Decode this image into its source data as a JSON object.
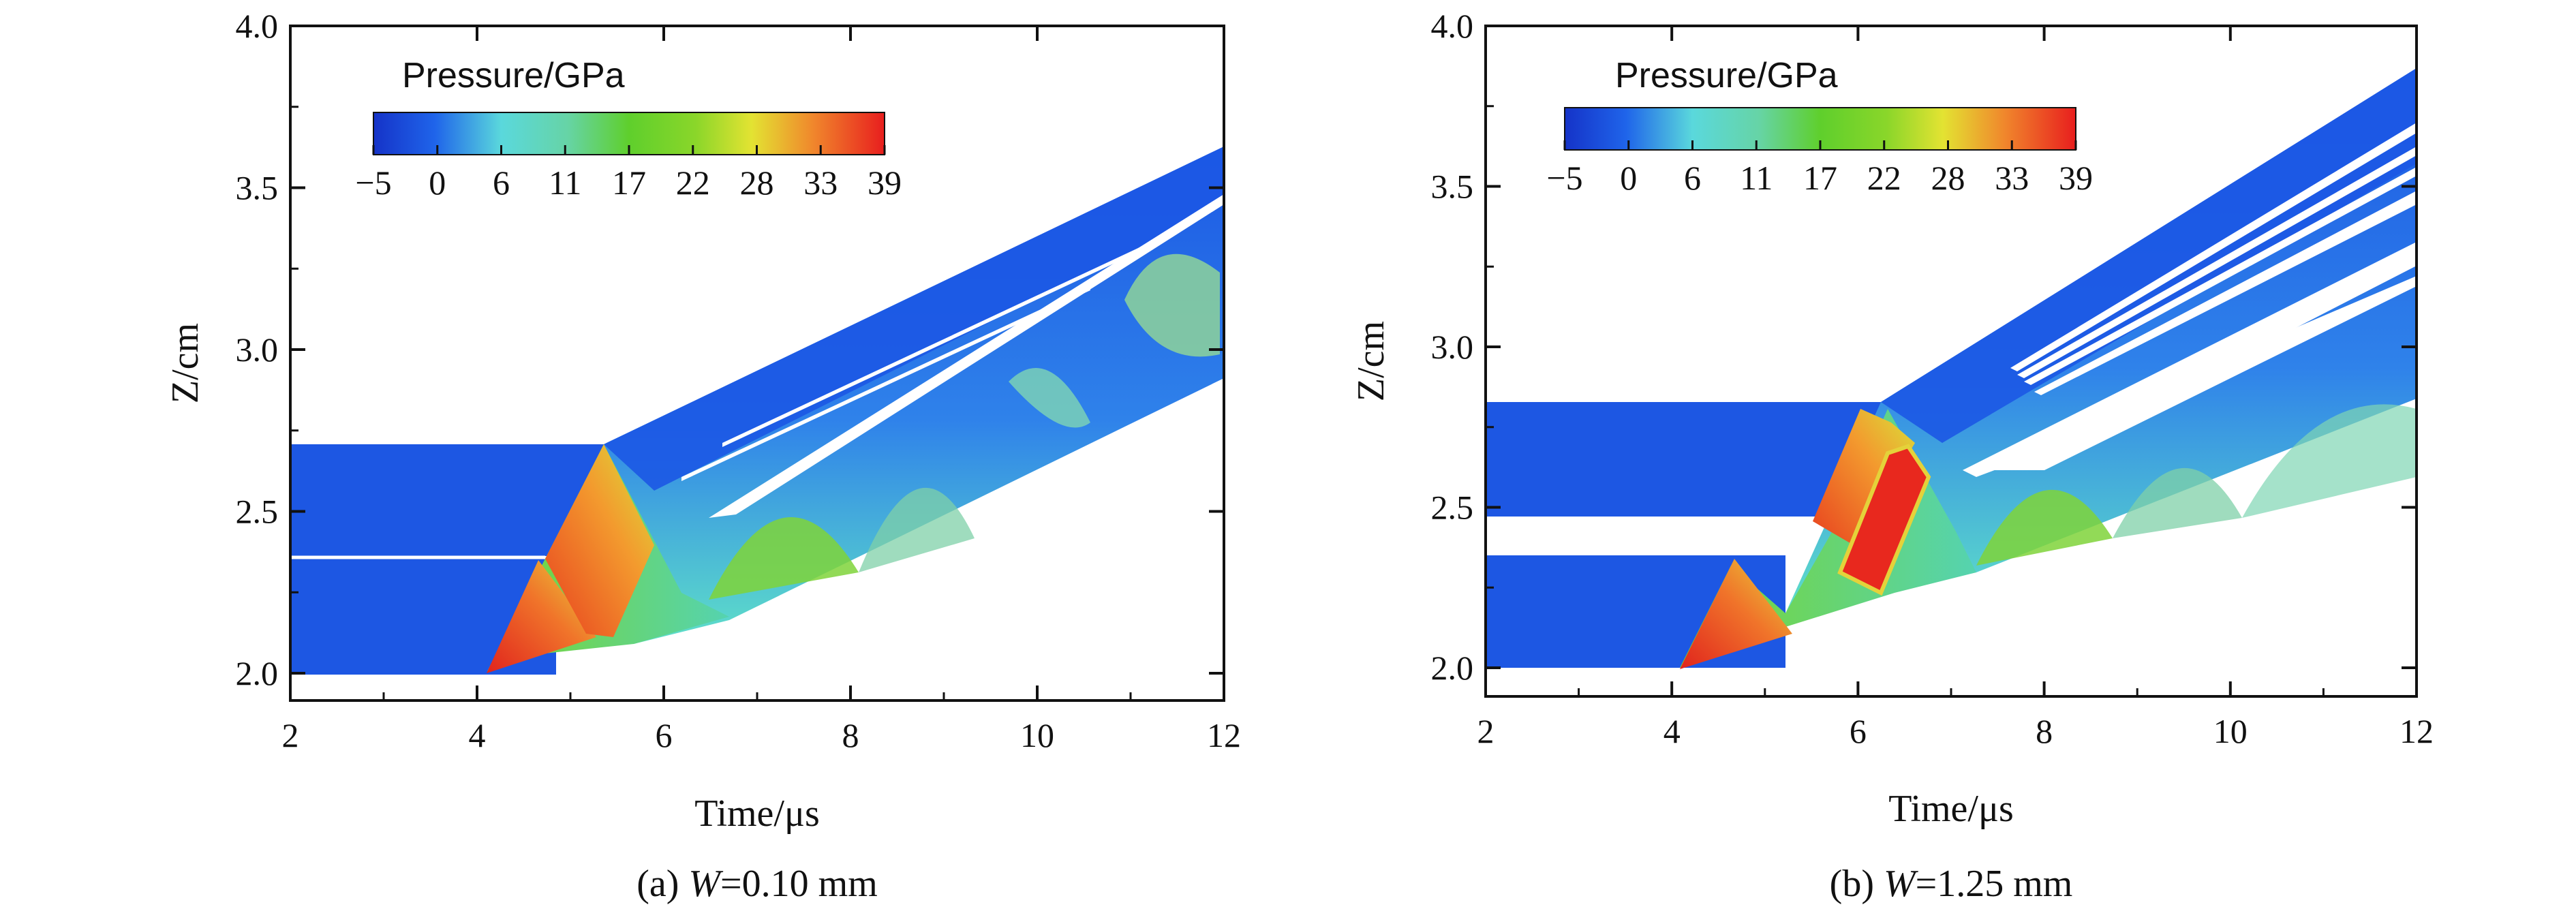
{
  "chart_data": [
    {
      "type": "heatmap",
      "caption_prefix": "(a) ",
      "caption_var": "W",
      "caption_suffix": "=0.10 mm",
      "xlabel": "Time/μs",
      "ylabel": "Z/cm",
      "xlim": [
        2,
        12
      ],
      "ylim": [
        1.9,
        4.0
      ],
      "xticks": [
        "2",
        "4",
        "6",
        "8",
        "10",
        "12"
      ],
      "yticks": [
        "2.0",
        "2.5",
        "3.0",
        "3.5",
        "4.0"
      ],
      "colorbar": {
        "title": "Pressure/GPa",
        "ticks": [
          "−5",
          "0",
          "6",
          "11",
          "17",
          "22",
          "28",
          "33",
          "39"
        ],
        "range": [
          -5,
          39
        ]
      },
      "initial_layers_z": [
        [
          2.0,
          2.35
        ],
        [
          2.35,
          2.7
        ]
      ],
      "gap_width_mm": 0.1
    },
    {
      "type": "heatmap",
      "caption_prefix": "(b) ",
      "caption_var": "W",
      "caption_suffix": "=1.25 mm",
      "xlabel": "Time/μs",
      "ylabel": "Z/cm",
      "xlim": [
        2,
        12
      ],
      "ylim": [
        1.9,
        4.0
      ],
      "xticks": [
        "2",
        "4",
        "6",
        "8",
        "10",
        "12"
      ],
      "yticks": [
        "2.0",
        "2.5",
        "3.0",
        "3.5",
        "4.0"
      ],
      "colorbar": {
        "title": "Pressure/GPa",
        "ticks": [
          "−5",
          "0",
          "6",
          "11",
          "17",
          "22",
          "28",
          "33",
          "39"
        ],
        "range": [
          -5,
          39
        ]
      },
      "initial_layers_z": [
        [
          2.0,
          2.35
        ],
        [
          2.475,
          2.82
        ]
      ],
      "gap_width_mm": 1.25
    }
  ],
  "colors": {
    "low": "#1a55e0",
    "cyan": "#5fe0d6",
    "green": "#6fd23a",
    "yellow": "#e8e23a",
    "orange": "#f08a2c",
    "high": "#e8281e"
  }
}
